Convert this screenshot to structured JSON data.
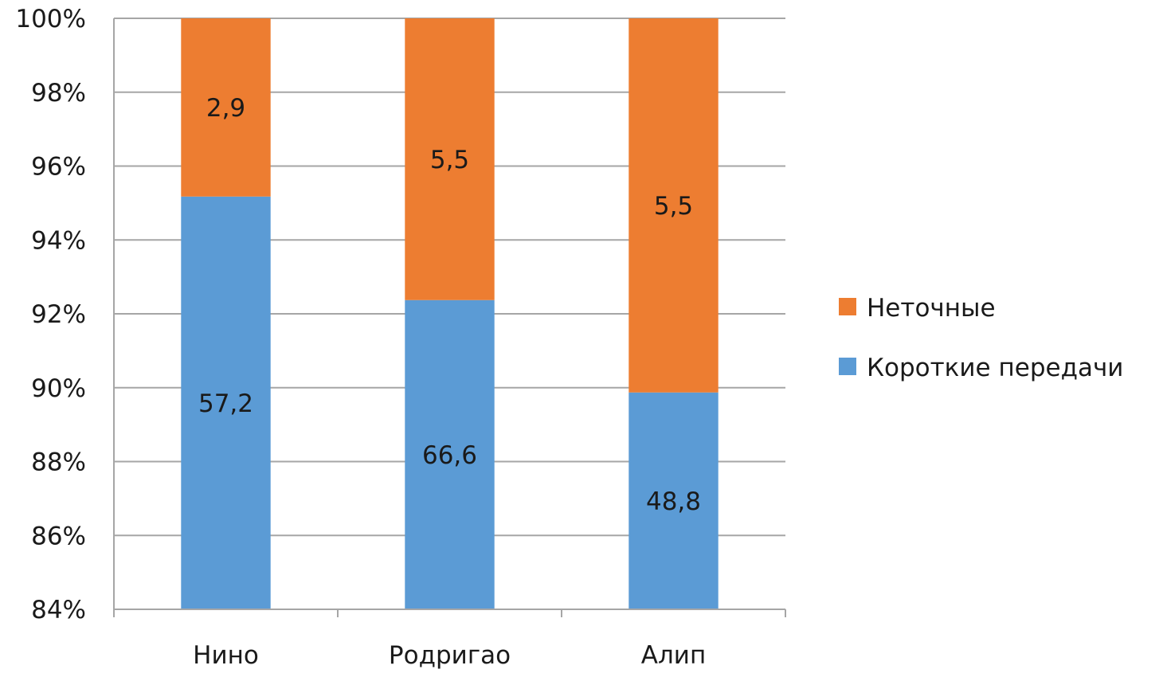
{
  "chart_data": {
    "type": "bar",
    "stacked": "percent",
    "categories": [
      "Нино",
      "Родригао",
      "Алип"
    ],
    "series": [
      {
        "name": "Короткие передачи",
        "values": [
          57.2,
          66.6,
          48.8
        ],
        "labels": [
          "57,2",
          "66,6",
          "48,8"
        ],
        "color": "#5b9bd5"
      },
      {
        "name": "Неточные",
        "values": [
          2.9,
          5.5,
          5.5
        ],
        "labels": [
          "2,9",
          "5,5",
          "5,5"
        ],
        "color": "#ed7d31"
      }
    ],
    "ylim": [
      0.84,
      1.0
    ],
    "yticks": [
      "84%",
      "86%",
      "88%",
      "90%",
      "92%",
      "94%",
      "96%",
      "98%",
      "100%"
    ],
    "title": "",
    "xlabel": "",
    "ylabel": "",
    "grid": true,
    "legend_position": "right",
    "legend_order": [
      1,
      0
    ]
  }
}
